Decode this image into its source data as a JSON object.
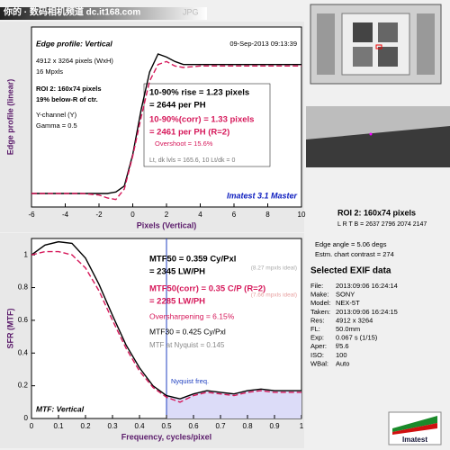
{
  "header": {
    "watermark": "你的 · 数码相机频道 dc.it168.com",
    "file_type": "JPG"
  },
  "chart_data": [
    {
      "type": "line",
      "title": "Edge profile: Vertical",
      "x_label": "Pixels (Vertical)",
      "y_label": "Edge profile (linear)",
      "annotations": [
        "09-Sep-2013 09:13:39",
        "4912 x 3264 pixels (WxH)",
        "16 Mpxls",
        "ROI 2: 160x74 pixels",
        "19% below-R of ctr.",
        "Y-channel (Y)",
        "Gamma = 0.5",
        "10-90% rise = 1.23 pixels",
        "= 2644 per PH",
        "10-90%(corr) = 1.33 pixels",
        "= 2461 per PH  (R=2)",
        "Overshoot = 15.6%",
        "Lt, dk lvls = 165.6, 10   Lt/dk = 0",
        "Imatest 3.1 Master"
      ],
      "x": [
        -6,
        -5,
        -4,
        -3,
        -2,
        -1.5,
        -1,
        -0.5,
        0,
        0.5,
        1,
        1.5,
        2,
        2.5,
        3,
        4,
        5,
        6,
        7,
        8,
        9,
        10
      ],
      "series": [
        {
          "color": "#000000",
          "values": [
            0.09,
            0.09,
            0.09,
            0.09,
            0.09,
            0.09,
            0.1,
            0.14,
            0.35,
            0.65,
            0.9,
            1.02,
            1.0,
            0.97,
            0.95,
            0.95,
            0.95,
            0.95,
            0.95,
            0.95,
            0.95,
            0.95
          ]
        },
        {
          "color": "#d6185a",
          "values": [
            0.09,
            0.09,
            0.09,
            0.09,
            0.08,
            0.06,
            0.05,
            0.12,
            0.34,
            0.6,
            0.84,
            0.95,
            0.97,
            0.94,
            0.93,
            0.94,
            0.94,
            0.94,
            0.94,
            0.94,
            0.94,
            0.94
          ]
        }
      ],
      "xlim": [
        -6,
        10
      ],
      "xticks": [
        -6,
        -4,
        -2,
        0,
        2,
        4,
        6,
        8,
        10
      ],
      "ylim": [
        0,
        1.2
      ]
    },
    {
      "type": "line",
      "title": "MTF: Vertical",
      "x_label": "Frequency, cycles/pixel",
      "y_label": "SFR (MTF)",
      "annotations": [
        "MTF50 = 0.359 Cy/Pxl",
        "= 2345 LW/PH",
        "(8.27 mpxls ideal)",
        "MTF50(corr) = 0.35 C/P   (R=2)",
        "= 2285 LW/PH",
        "(7.66 mpxls ideal)",
        "Oversharpening = 6.15%",
        "MTF30 = 0.425 Cy/Pxl",
        "MTF at Nyquist = 0.145",
        "Nyquist freq."
      ],
      "x": [
        0,
        0.05,
        0.1,
        0.15,
        0.2,
        0.25,
        0.3,
        0.35,
        0.4,
        0.45,
        0.5,
        0.55,
        0.6,
        0.65,
        0.7,
        0.75,
        0.8,
        0.85,
        0.9,
        0.95,
        1
      ],
      "series": [
        {
          "color": "#000000",
          "values": [
            1.0,
            1.06,
            1.08,
            1.07,
            0.98,
            0.82,
            0.63,
            0.45,
            0.31,
            0.2,
            0.14,
            0.12,
            0.15,
            0.17,
            0.16,
            0.15,
            0.17,
            0.18,
            0.17,
            0.17,
            0.17
          ]
        },
        {
          "color": "#d6185a",
          "values": [
            1.0,
            1.02,
            1.02,
            1.0,
            0.92,
            0.78,
            0.6,
            0.43,
            0.29,
            0.19,
            0.13,
            0.1,
            0.14,
            0.16,
            0.15,
            0.14,
            0.16,
            0.17,
            0.16,
            0.16,
            0.16
          ]
        }
      ],
      "nyquist": 0.5,
      "xlim": [
        0,
        1
      ],
      "xticks": [
        0,
        0.1,
        0.2,
        0.3,
        0.4,
        0.5,
        0.6,
        0.7,
        0.8,
        0.9,
        1
      ],
      "ylim": [
        0,
        1.1
      ],
      "yticks": [
        0,
        0.2,
        0.4,
        0.6,
        0.8,
        1
      ]
    }
  ],
  "roi": {
    "title": "ROI 2:  160x74 pixels",
    "bounds": "L R T B = 2637 2796  2074 2147",
    "edge_angle": "Edge angle = 5.06 degs",
    "contrast": "Estm. chart contrast = 274"
  },
  "exif": {
    "title": "Selected EXIF data",
    "rows": [
      [
        "File:",
        "2013:09:06 16:24:14"
      ],
      [
        "Make:",
        "SONY"
      ],
      [
        "Model:",
        "NEX-5T"
      ],
      [
        "Taken:",
        "2013:09:06 16:24:15"
      ],
      [
        "Res:",
        "4912 x 3264"
      ],
      [
        "FL:",
        "50.0mm"
      ],
      [
        "Exp:",
        "0.067 s  (1/15)"
      ],
      [
        "Aper:",
        "f/5.6"
      ],
      [
        "ISO:",
        "100"
      ],
      [
        "WBal:",
        "Auto"
      ]
    ]
  },
  "logo": "Imatest"
}
